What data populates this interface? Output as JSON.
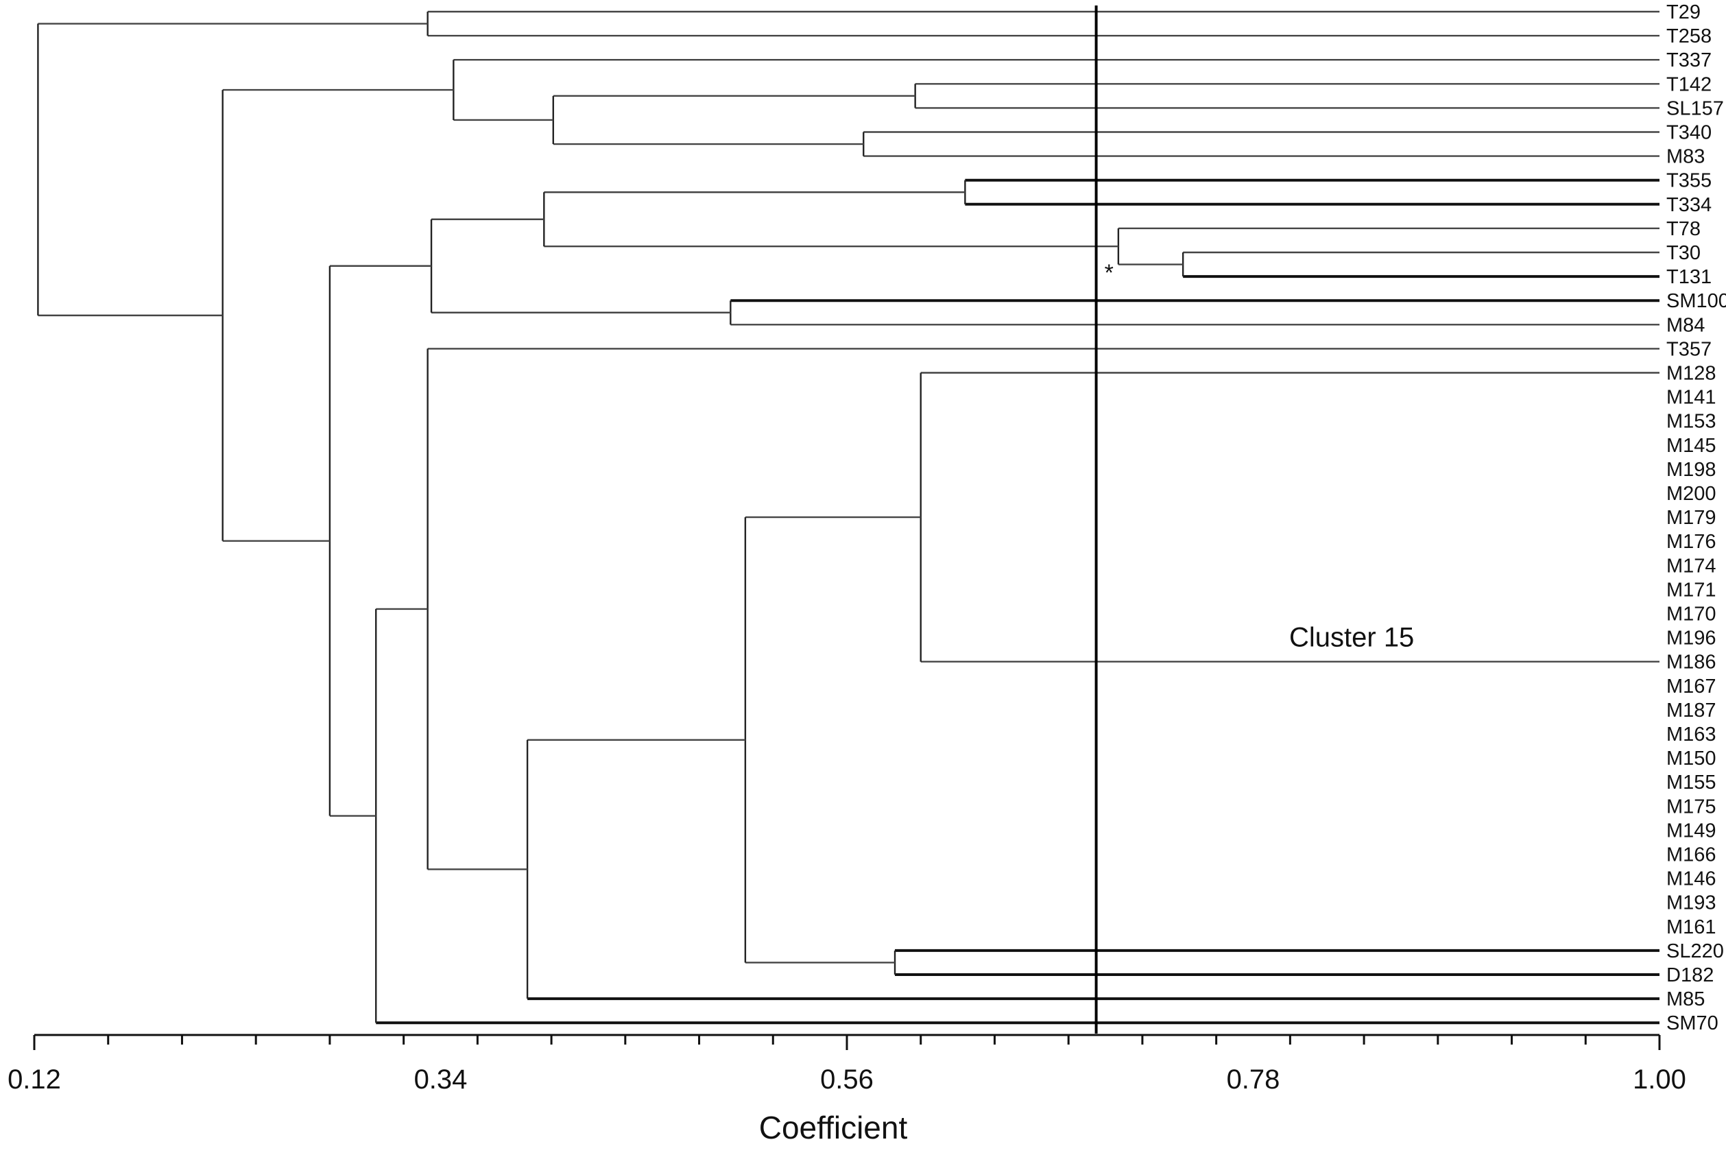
{
  "chart_data": {
    "type": "dendrogram",
    "xlabel": "Coefficient",
    "xlim": [
      0.12,
      1.0
    ],
    "ticks": [
      0.12,
      0.34,
      0.56,
      0.78,
      1.0
    ],
    "tick_labels": [
      "0.12",
      "0.34",
      "0.56",
      "0.78",
      "1.00"
    ],
    "cut_line": 0.695,
    "annotation_text": "*",
    "cluster_label": "Cluster 15",
    "leaves": [
      "T29",
      "T258",
      "T337",
      "T142",
      "SL157",
      "T340",
      "M83",
      "T355",
      "T334",
      "T78",
      "T30",
      "T131",
      "SM100",
      "M84",
      "T357",
      "M128",
      "M141",
      "M153",
      "M145",
      "M198",
      "M200",
      "M179",
      "M176",
      "M174",
      "M171",
      "M170",
      "M196",
      "M186",
      "M167",
      "M187",
      "M163",
      "M150",
      "M155",
      "M175",
      "M149",
      "M166",
      "M146",
      "M193",
      "M161",
      "SL220",
      "D182",
      "M85",
      "SM70"
    ],
    "merges": [
      {
        "id": "n1",
        "children": [
          "T29",
          "T258"
        ],
        "height": 0.333
      },
      {
        "id": "n2",
        "children": [
          "T142",
          "SL157"
        ],
        "height": 0.597
      },
      {
        "id": "n3",
        "children": [
          "T340",
          "M83"
        ],
        "height": 0.569
      },
      {
        "id": "n4",
        "children": [
          "n2",
          "n3"
        ],
        "height": 0.401
      },
      {
        "id": "n5",
        "children": [
          "T337",
          "n4"
        ],
        "height": 0.347
      },
      {
        "id": "n6",
        "children": [
          "T355",
          "T334"
        ],
        "height": 0.624
      },
      {
        "id": "n7",
        "children": [
          "T30",
          "T131"
        ],
        "height": 0.742
      },
      {
        "id": "n8",
        "children": [
          "T78",
          "n7"
        ],
        "height": 0.707
      },
      {
        "id": "n9",
        "children": [
          "n6",
          "n8"
        ],
        "height": 0.396
      },
      {
        "id": "n10",
        "children": [
          "SM100",
          "M84"
        ],
        "height": 0.497
      },
      {
        "id": "n11",
        "children": [
          "n9",
          "n10"
        ],
        "height": 0.335
      },
      {
        "id": "n12",
        "children": [
          "M128",
          "M141",
          "M153",
          "M145",
          "M198",
          "M200",
          "M179",
          "M176",
          "M174",
          "M171",
          "M170",
          "M196",
          "M186",
          "M167",
          "M187",
          "M163",
          "M150",
          "M155",
          "M175",
          "M149",
          "M166",
          "M146",
          "M193",
          "M161"
        ],
        "height": 1.0
      },
      {
        "id": "n13",
        "children": [
          "M128",
          "M186"
        ],
        "height": 0.6
      },
      {
        "id": "n14",
        "children": [
          "SL220",
          "D182"
        ],
        "height": 0.586
      },
      {
        "id": "n15",
        "children": [
          "n13",
          "n14"
        ],
        "height": 0.505
      },
      {
        "id": "n16",
        "children": [
          "n15",
          "M85"
        ],
        "height": 0.387
      },
      {
        "id": "n17",
        "children": [
          "T357",
          "n16"
        ],
        "height": 0.333
      },
      {
        "id": "n18",
        "children": [
          "n17",
          "SM70"
        ],
        "height": 0.305
      },
      {
        "id": "n19",
        "children": [
          "n11",
          "n18"
        ],
        "height": 0.28
      },
      {
        "id": "n20",
        "children": [
          "n5",
          "n19"
        ],
        "height": 0.222
      },
      {
        "id": "n21",
        "children": [
          "n1",
          "n20"
        ],
        "height": 0.122
      }
    ],
    "bold_leaves": [
      "T334",
      "T131",
      "M85",
      "SM70",
      "T355",
      "SM100",
      "SL220",
      "D182"
    ]
  }
}
